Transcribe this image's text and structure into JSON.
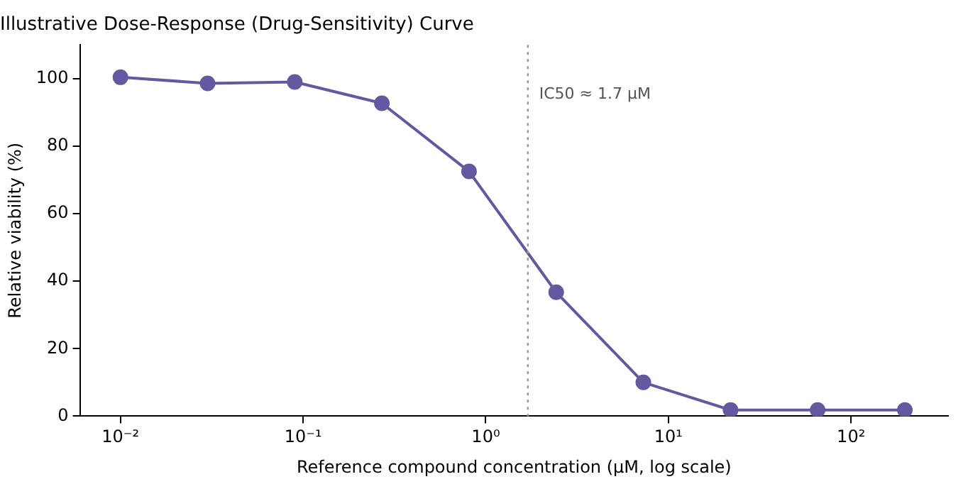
{
  "chart_data": {
    "type": "line",
    "title": "Illustrative Dose-Response (Drug-Sensitivity) Curve",
    "xlabel": "Reference compound concentration (µM, log scale)",
    "ylabel": "Relative viability (%)",
    "x": [
      0.01,
      0.03,
      0.09,
      0.27,
      0.81,
      2.43,
      7.29,
      21.9,
      65.6,
      197
    ],
    "series": [
      {
        "color": "#6459a0",
        "values": [
          100.4,
          98.6,
          99,
          92.7,
          72.5,
          36.7,
          10,
          1.8,
          1.8,
          1.8
        ]
      }
    ],
    "log": "x",
    "xlim": [
      0.006,
      340
    ],
    "ylim": [
      0,
      110
    ],
    "xticks": [
      {
        "value": 0.01,
        "label": "10⁻²"
      },
      {
        "value": 0.1,
        "label": "10⁻¹"
      },
      {
        "value": 1,
        "label": "10⁰"
      },
      {
        "value": 10,
        "label": "10¹"
      },
      {
        "value": 100,
        "label": "10²"
      }
    ],
    "yticks": [
      0,
      20,
      40,
      60,
      80,
      100
    ],
    "ref_lines": [
      {
        "axis": "x",
        "value": 1.7,
        "label": "IC50 ≈ 1.7 µM",
        "color": "#999999",
        "line_style": "dotted"
      }
    ],
    "marker": "circle",
    "line_style": "solid",
    "grid": false,
    "legend": false
  }
}
